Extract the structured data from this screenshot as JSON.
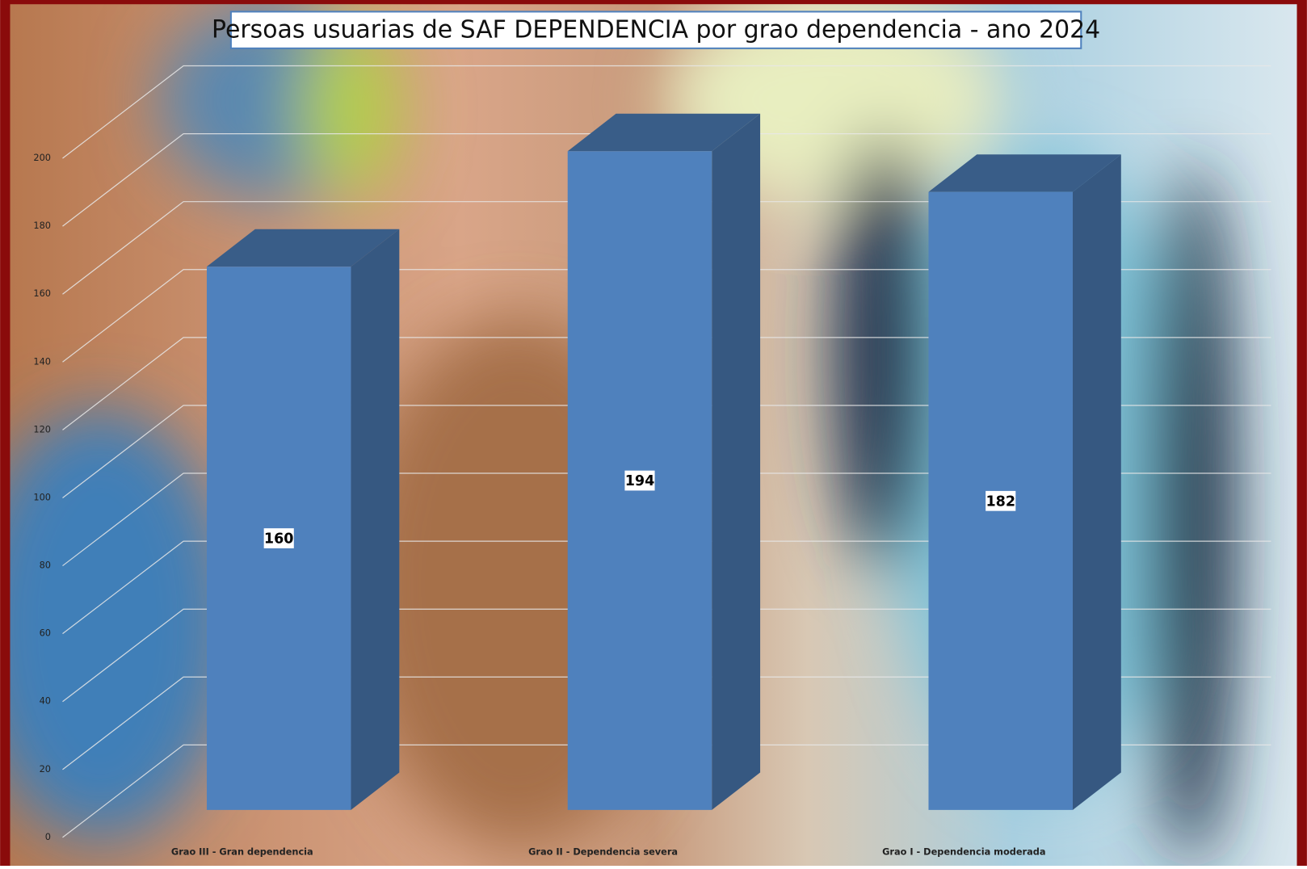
{
  "chart_data": {
    "type": "bar3d",
    "title": "Persoas usuarias de SAF DEPENDENCIA por grao dependencia - ano 2024",
    "categories": [
      "Grao III - Gran dependencia",
      "Grao II - Dependencia severa",
      "Grao I - Dependencia moderada"
    ],
    "values": [
      160,
      194,
      182
    ],
    "color": "#4f81bd",
    "ylim": [
      0,
      200
    ],
    "yticks": [
      0,
      20,
      40,
      60,
      80,
      100,
      120,
      140,
      160,
      180,
      200
    ],
    "grid": true
  }
}
